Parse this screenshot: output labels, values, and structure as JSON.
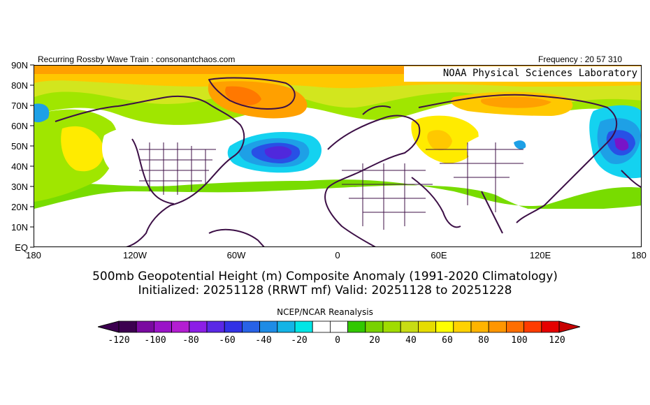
{
  "header": {
    "left": "Recurring Rossby Wave Train : consonantchaos.com",
    "right": "Frequency : 20 57 310"
  },
  "lab_label": "NOAA Physical Sciences Laboratory",
  "lat_labels": [
    "90N",
    "80N",
    "70N",
    "60N",
    "50N",
    "40N",
    "30N",
    "20N",
    "10N",
    "EQ"
  ],
  "lon_labels": [
    "180",
    "120W",
    "60W",
    "0",
    "60E",
    "120E",
    "180"
  ],
  "title_line1": "500mb Geopotential Height (m) Composite Anomaly (1991-2020 Climatology)",
  "title_line2": "Initialized: 20251128 (RRWT mf) Valid: 20251128 to 20251228",
  "colorbar": {
    "source": "NCEP/NCAR Reanalysis",
    "tick_labels": [
      "-120",
      "-100",
      "-80",
      "-60",
      "-40",
      "-20",
      "0",
      "20",
      "40",
      "60",
      "80",
      "100",
      "120"
    ],
    "colors": [
      "#3c0050",
      "#7a0aa0",
      "#9a14c8",
      "#b41ed2",
      "#8c1ee6",
      "#5a28e6",
      "#3232e6",
      "#2862e6",
      "#1e8ce6",
      "#14b4e6",
      "#00e6e6",
      "#ffffff",
      "#ffffff",
      "#32c800",
      "#78d200",
      "#a0dc00",
      "#c8dc14",
      "#e6dc00",
      "#ffff00",
      "#ffd200",
      "#ffb400",
      "#ff9600",
      "#ff6e00",
      "#ff3c00",
      "#e60000"
    ],
    "under_color": "#3c0050",
    "over_color": "#c80000"
  },
  "colors": {
    "white": "#ffffff",
    "lightgreen": "#78dc00",
    "green": "#a0e600",
    "yellowgreen": "#d2e61e",
    "yellow": "#ffeb00",
    "gold": "#ffc800",
    "orange": "#ffa000",
    "darkorange": "#ff7800",
    "cyan": "#14d2f0",
    "lightblue": "#1ea0e6",
    "blue": "#2850e6",
    "indigo": "#5028dc",
    "violet": "#7814c8",
    "coast": "#3c0f46"
  }
}
